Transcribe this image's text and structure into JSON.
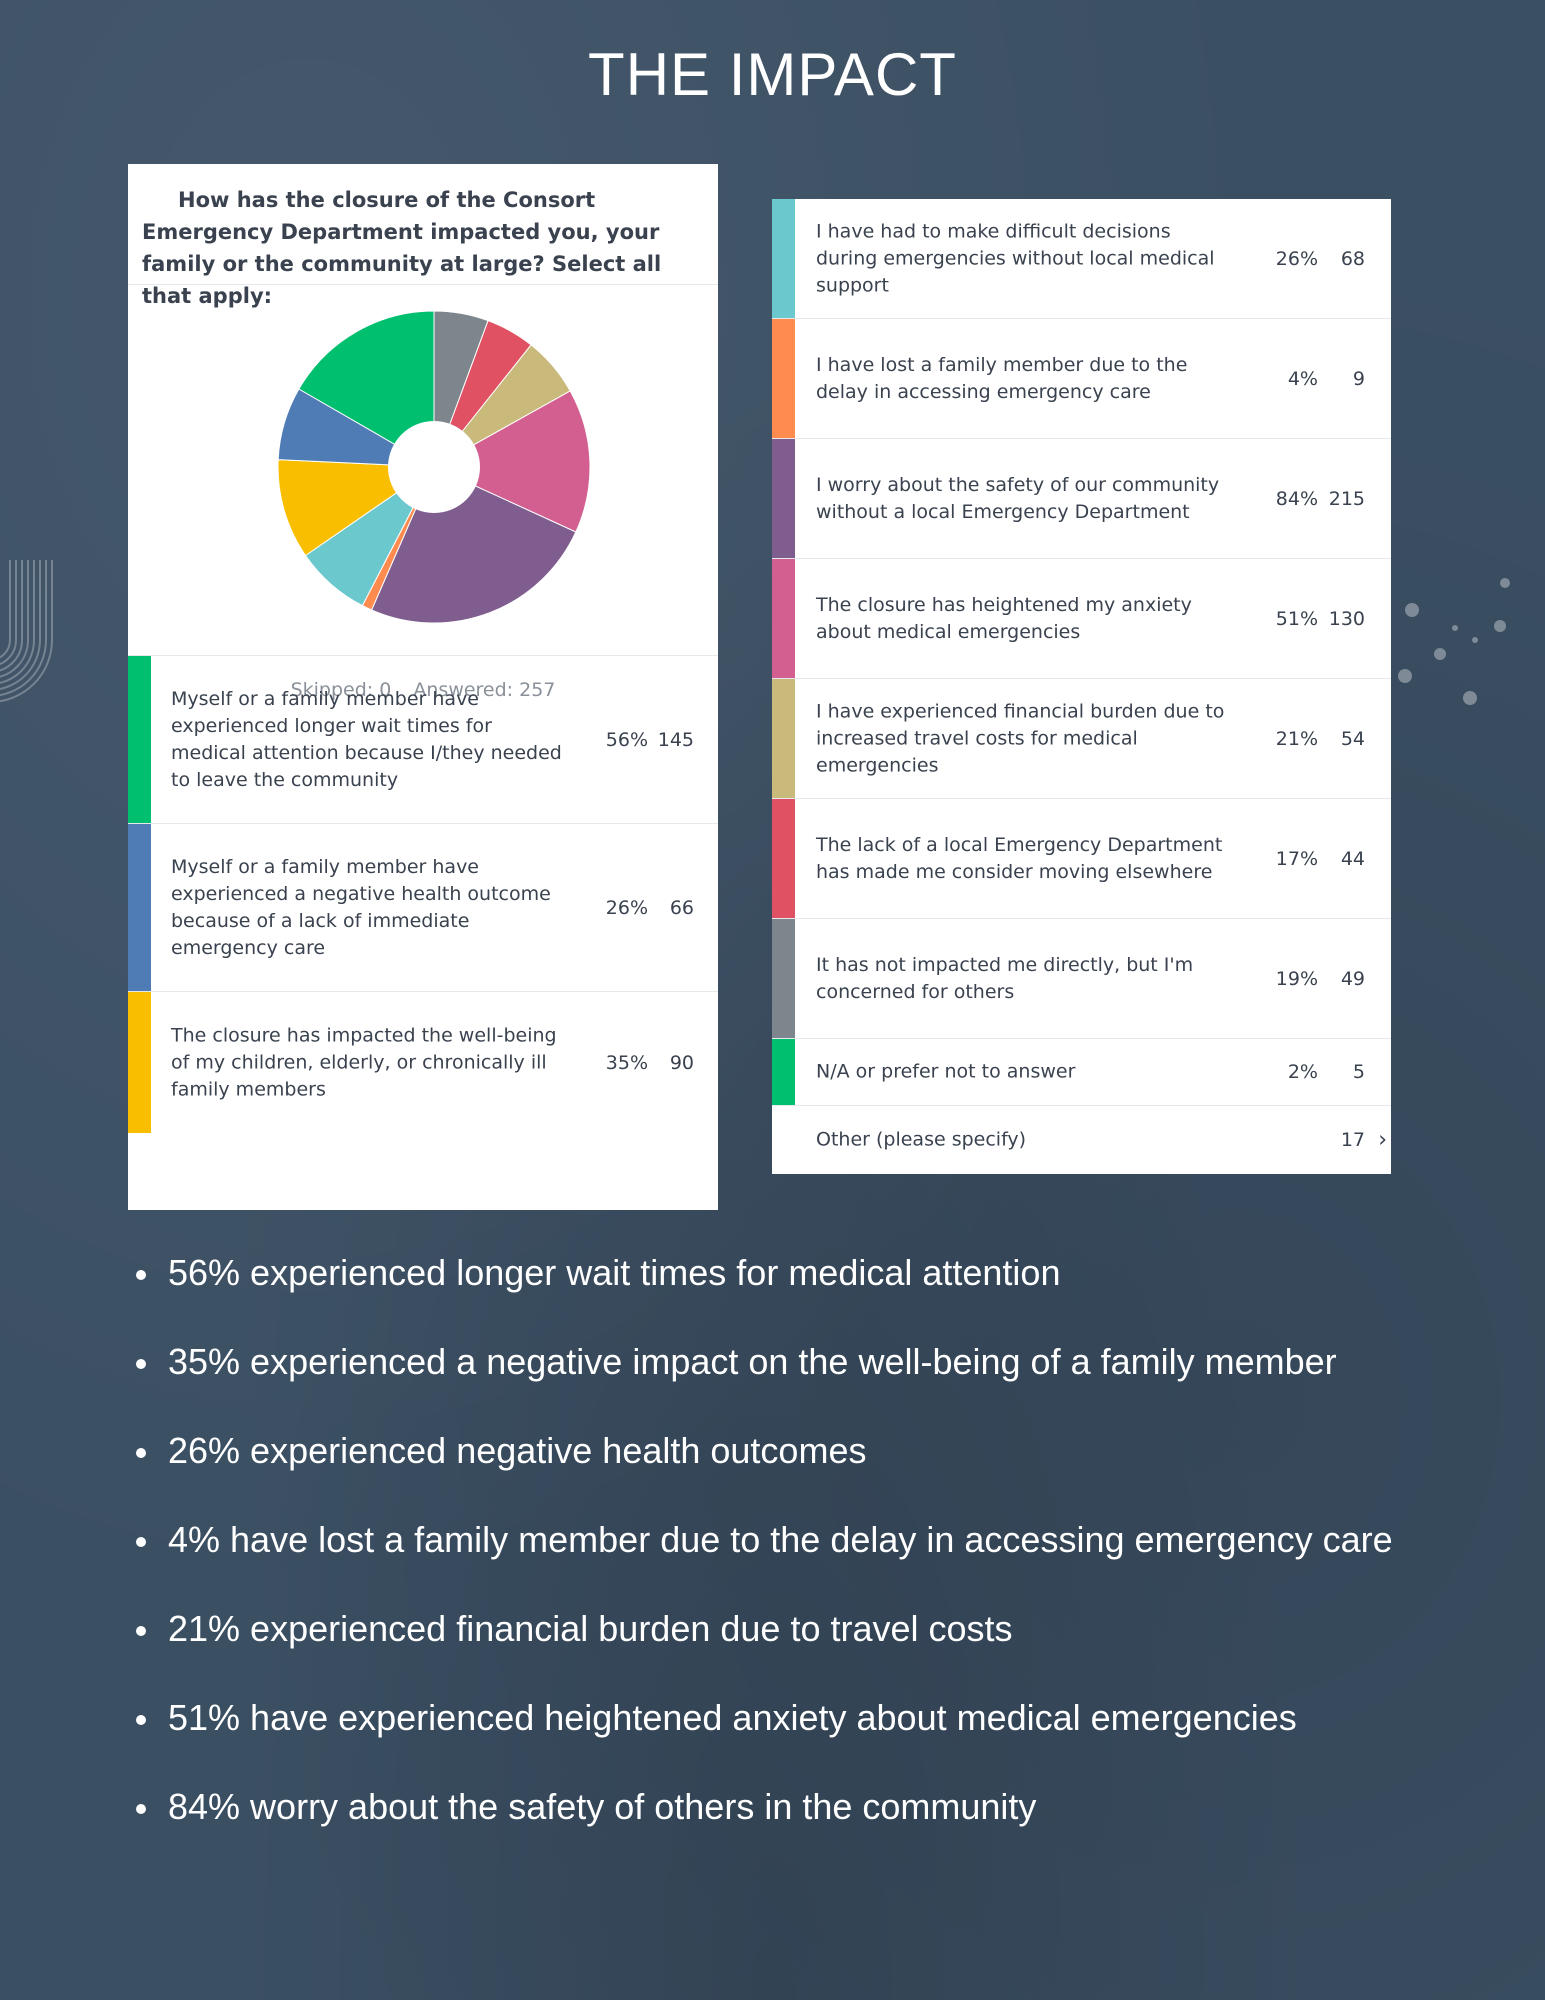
{
  "title": "THE IMPACT",
  "survey": {
    "question": "How has the closure of the Consort Emergency Department impacted you, your family or the community at large? Select all that apply:",
    "skipped_label": "Skipped: 0",
    "answered_label": "Answered: 257"
  },
  "chart_data": {
    "type": "pie",
    "title": "How has the closure of the Consort Emergency Department impacted you, your family or the community at large? Select all that apply:",
    "answered": 257,
    "skipped": 0,
    "categories": [
      "Myself or a family member have experienced longer wait times for medical attention because I/they needed to leave the community",
      "Myself or a family member have experienced a negative health outcome because of a lack of immediate emergency care",
      "The closure has impacted the well-being of my children, elderly, or chronically ill family members",
      "I have had to make difficult decisions during emergencies without local medical support",
      "I have lost a family member due to the delay in accessing emergency care",
      "I worry about the safety of our community without a local Emergency Department",
      "The closure has heightened my anxiety about medical emergencies",
      "I have experienced financial burden due to increased travel costs for medical emergencies",
      "The lack of a local Emergency Department has made me consider moving elsewhere",
      "It has not impacted me directly, but I'm concerned for others",
      "N/A or prefer not to answer"
    ],
    "values": [
      145,
      66,
      90,
      68,
      9,
      215,
      130,
      54,
      44,
      49,
      5
    ],
    "percents": [
      "56%",
      "26%",
      "35%",
      "26%",
      "4%",
      "84%",
      "51%",
      "21%",
      "17%",
      "19%",
      "2%"
    ],
    "colors": [
      "#00bf6f",
      "#507cb6",
      "#f9be00",
      "#6bc8cd",
      "#ff8b4f",
      "#7f5e8f",
      "#d25f90",
      "#c9b97a",
      "#e05263",
      "#7d868c",
      "#00bf6f"
    ],
    "slice_order": [
      9,
      8,
      7,
      6,
      5,
      4,
      3,
      2,
      1,
      0
    ]
  },
  "left_rows": [
    {
      "label": "Myself or a family member have experienced longer wait times for medical attention because I/they needed to leave the community",
      "pct": "56%",
      "count": "145",
      "color": "#00bf6f"
    },
    {
      "label": "Myself or a family member have experienced a negative health outcome because of a lack of immediate emergency care",
      "pct": "26%",
      "count": "66",
      "color": "#507cb6"
    },
    {
      "label": "The closure has impacted the well-being of my children, elderly, or chronically ill family members",
      "pct": "35%",
      "count": "90",
      "color": "#f9be00"
    }
  ],
  "right_rows": [
    {
      "label": "I have had to make difficult decisions during emergencies without local medical support",
      "pct": "26%",
      "count": "68",
      "color": "#6bc8cd"
    },
    {
      "label": "I have lost a family member due to the delay in accessing emergency care",
      "pct": "4%",
      "count": "9",
      "color": "#ff8b4f"
    },
    {
      "label": "I worry about the safety of our community without a local Emergency Department",
      "pct": "84%",
      "count": "215",
      "color": "#7f5e8f"
    },
    {
      "label": "The closure has heightened my anxiety about medical emergencies",
      "pct": "51%",
      "count": "130",
      "color": "#d25f90"
    },
    {
      "label": "I have experienced financial burden due to increased travel costs for medical emergencies",
      "pct": "21%",
      "count": "54",
      "color": "#c9b97a"
    },
    {
      "label": "The lack of a local Emergency Department has made me consider moving elsewhere",
      "pct": "17%",
      "count": "44",
      "color": "#e05263"
    },
    {
      "label": "It has not impacted me directly, but I'm concerned for others",
      "pct": "19%",
      "count": "49",
      "color": "#7d868c"
    },
    {
      "label": "N/A or prefer not to answer",
      "pct": "2%",
      "count": "5",
      "color": "#00bf6f"
    }
  ],
  "other_row": {
    "label": "Other (please specify)",
    "count": "17",
    "chevron": "chevron-right-icon"
  },
  "bullets": [
    "56% experienced longer wait times for medical attention",
    "35% experienced a negative impact on the well-being of a family member",
    "26% experienced negative health outcomes",
    "4% have lost a family member due to the delay in accessing emergency care",
    "21% experienced financial burden due to travel costs",
    "51% have experienced heightened anxiety about medical emergencies",
    "84% worry about the safety of others in the community"
  ]
}
